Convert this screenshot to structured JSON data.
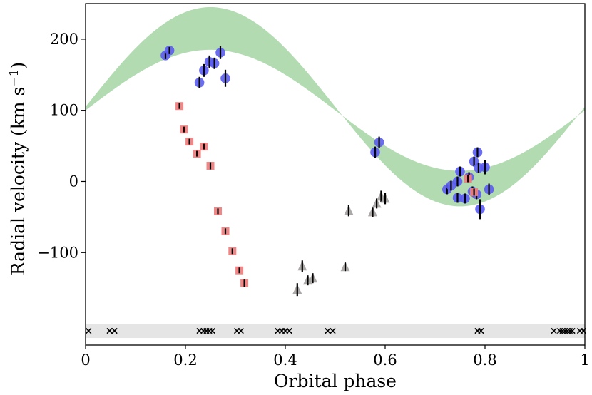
{
  "chart_data": {
    "type": "scatter",
    "xlabel": "Orbital phase",
    "ylabel": "Radial velocity (km s−1)",
    "ylabel_base": "Radial velocity (km s",
    "ylabel_sup": "−1",
    "ylabel_close": ")",
    "xlim": [
      0,
      1
    ],
    "ylim": [
      -230,
      250
    ],
    "x_ticks": [
      0,
      0.2,
      0.4,
      0.6,
      0.8,
      1
    ],
    "x_tick_labels": [
      "0",
      "0.2",
      "0.4",
      "0.6",
      "0.8",
      "1"
    ],
    "y_ticks": [
      -100,
      0,
      100,
      200
    ],
    "y_tick_labels": [
      "−100",
      "0",
      "100",
      "200"
    ],
    "colors": {
      "band": "#b2dbb2",
      "blue": "#5a5cf0",
      "red": "#f08080",
      "grey": "#a9a3a3",
      "strip": "#e5e5e5"
    },
    "model_band": {
      "description": "sinusoid envelope",
      "upper": {
        "gamma": 105,
        "K": 140,
        "phase_peak": 0.25
      },
      "lower": {
        "gamma": 100,
        "K": 85,
        "phase_peak": 0.25
      }
    },
    "series": [
      {
        "name": "blue circles",
        "marker": "circle",
        "points": [
          {
            "x": 0.16,
            "y": 177,
            "err": 5
          },
          {
            "x": 0.168,
            "y": 184,
            "err": 5
          },
          {
            "x": 0.228,
            "y": 139,
            "err": 8
          },
          {
            "x": 0.237,
            "y": 156,
            "err": 9
          },
          {
            "x": 0.248,
            "y": 168,
            "err": 9
          },
          {
            "x": 0.258,
            "y": 166,
            "err": 8
          },
          {
            "x": 0.27,
            "y": 181,
            "err": 9
          },
          {
            "x": 0.28,
            "y": 145,
            "err": 12
          },
          {
            "x": 0.58,
            "y": 41,
            "err": 8
          },
          {
            "x": 0.588,
            "y": 55,
            "err": 8
          },
          {
            "x": 0.724,
            "y": -11,
            "err": 7
          },
          {
            "x": 0.732,
            "y": -6,
            "err": 7
          },
          {
            "x": 0.745,
            "y": 0,
            "err": 7
          },
          {
            "x": 0.75,
            "y": 14,
            "err": 7
          },
          {
            "x": 0.745,
            "y": -23,
            "err": 7
          },
          {
            "x": 0.76,
            "y": -24,
            "err": 7
          },
          {
            "x": 0.768,
            "y": 6,
            "err": 7
          },
          {
            "x": 0.775,
            "y": -14,
            "err": 7
          },
          {
            "x": 0.778,
            "y": 28,
            "err": 7
          },
          {
            "x": 0.783,
            "y": -18,
            "err": 7
          },
          {
            "x": 0.785,
            "y": 41,
            "err": 7
          },
          {
            "x": 0.787,
            "y": 19,
            "err": 7
          },
          {
            "x": 0.79,
            "y": -39,
            "err": 14
          },
          {
            "x": 0.8,
            "y": 20,
            "err": 10
          },
          {
            "x": 0.808,
            "y": -11,
            "err": 8
          }
        ]
      },
      {
        "name": "red squares",
        "marker": "square",
        "points": [
          {
            "x": 0.188,
            "y": 106,
            "err": 4
          },
          {
            "x": 0.197,
            "y": 73,
            "err": 4
          },
          {
            "x": 0.208,
            "y": 56,
            "err": 4
          },
          {
            "x": 0.223,
            "y": 39,
            "err": 4
          },
          {
            "x": 0.237,
            "y": 49,
            "err": 4
          },
          {
            "x": 0.25,
            "y": 22,
            "err": 5
          },
          {
            "x": 0.265,
            "y": -42,
            "err": 4
          },
          {
            "x": 0.28,
            "y": -70,
            "err": 4
          },
          {
            "x": 0.294,
            "y": -98,
            "err": 4
          },
          {
            "x": 0.308,
            "y": -125,
            "err": 4
          },
          {
            "x": 0.318,
            "y": -143,
            "err": 5
          },
          {
            "x": 0.766,
            "y": 4,
            "err": 5
          },
          {
            "x": 0.778,
            "y": -15,
            "err": 5
          }
        ]
      },
      {
        "name": "grey triangles",
        "marker": "triangle",
        "points": [
          {
            "x": 0.424,
            "y": -152,
            "err": 9
          },
          {
            "x": 0.434,
            "y": -119,
            "err": 8
          },
          {
            "x": 0.445,
            "y": -139,
            "err": 7
          },
          {
            "x": 0.455,
            "y": -136,
            "err": 7
          },
          {
            "x": 0.52,
            "y": -120,
            "err": 6
          },
          {
            "x": 0.527,
            "y": -41,
            "err": 8
          },
          {
            "x": 0.575,
            "y": -43,
            "err": 7
          },
          {
            "x": 0.583,
            "y": -31,
            "err": 7
          },
          {
            "x": 0.592,
            "y": -21,
            "err": 8
          },
          {
            "x": 0.6,
            "y": -24,
            "err": 8
          }
        ]
      },
      {
        "name": "phase coverage",
        "marker": "x",
        "y": -210,
        "x": [
          0.006,
          0.048,
          0.058,
          0.228,
          0.236,
          0.242,
          0.248,
          0.254,
          0.303,
          0.311,
          0.385,
          0.393,
          0.4,
          0.408,
          0.485,
          0.495,
          0.785,
          0.792,
          0.938,
          0.95,
          0.955,
          0.96,
          0.965,
          0.97,
          0.975,
          0.99,
          0.997
        ]
      }
    ]
  }
}
